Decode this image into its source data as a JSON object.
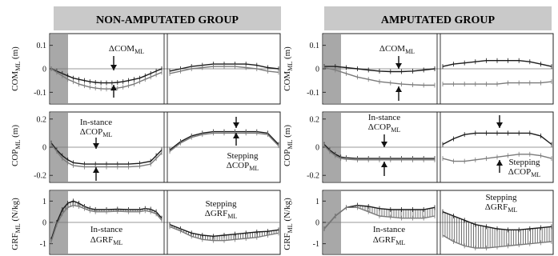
{
  "figure": {
    "groups": [
      {
        "title": "NON-AMPUTATED GROUP"
      },
      {
        "title": "AMPUTATED GROUP"
      }
    ]
  },
  "chart_data": [
    {
      "type": "line",
      "group": "NON-AMPUTATED GROUP",
      "ylabel": "COM_ML (m)",
      "ylim": [
        -0.15,
        0.15
      ],
      "yticks": [
        "0.1",
        "0",
        "-0.1"
      ],
      "zero_line": true,
      "shaded_region": "initial",
      "series": [
        {
          "segment": 1,
          "x": [
            0,
            0.05,
            0.1,
            0.15,
            0.2,
            0.25,
            0.3,
            0.35,
            0.4,
            0.45,
            0.5,
            0.55,
            0.6,
            0.65,
            0.7,
            0.75,
            0.8,
            0.85,
            0.9,
            0.95,
            1
          ],
          "values": [
            0,
            -0.01,
            -0.02,
            -0.03,
            -0.04,
            -0.045,
            -0.05,
            -0.055,
            -0.058,
            -0.06,
            -0.06,
            -0.06,
            -0.058,
            -0.055,
            -0.05,
            -0.045,
            -0.04,
            -0.03,
            -0.02,
            -0.01,
            0
          ]
        },
        {
          "segment": 1,
          "x": [
            0,
            0.05,
            0.1,
            0.15,
            0.2,
            0.25,
            0.3,
            0.35,
            0.4,
            0.45,
            0.5,
            0.55,
            0.6,
            0.65,
            0.7,
            0.75,
            0.8,
            0.85,
            0.9,
            0.95,
            1
          ],
          "values": [
            0,
            -0.015,
            -0.03,
            -0.045,
            -0.055,
            -0.065,
            -0.072,
            -0.078,
            -0.082,
            -0.085,
            -0.086,
            -0.085,
            -0.082,
            -0.078,
            -0.072,
            -0.065,
            -0.055,
            -0.045,
            -0.035,
            -0.025,
            -0.015
          ]
        },
        {
          "segment": 2,
          "x": [
            0,
            0.1,
            0.2,
            0.3,
            0.4,
            0.5,
            0.6,
            0.7,
            0.8,
            0.9,
            1
          ],
          "values": [
            -0.01,
            0,
            0.01,
            0.015,
            0.02,
            0.02,
            0.02,
            0.02,
            0.015,
            0.005,
            0
          ]
        },
        {
          "segment": 2,
          "x": [
            0,
            0.1,
            0.2,
            0.3,
            0.4,
            0.5,
            0.6,
            0.7,
            0.8,
            0.9,
            1
          ],
          "values": [
            -0.02,
            -0.01,
            0,
            0.005,
            0.01,
            0.01,
            0.01,
            0.005,
            0,
            -0.01,
            -0.015
          ]
        }
      ],
      "annotation": "ΔCOM_ML"
    },
    {
      "type": "line",
      "group": "NON-AMPUTATED GROUP",
      "ylabel": "COP_ML (m)",
      "ylim": [
        -0.25,
        0.25
      ],
      "yticks": [
        "0.2",
        "0",
        "-0.2"
      ],
      "zero_line": true,
      "shaded_region": "initial",
      "series": [
        {
          "segment": 1,
          "x": [
            0,
            0.05,
            0.1,
            0.15,
            0.2,
            0.3,
            0.4,
            0.5,
            0.6,
            0.7,
            0.8,
            0.9,
            0.95,
            1
          ],
          "values": [
            0.03,
            -0.02,
            -0.06,
            -0.09,
            -0.11,
            -0.12,
            -0.12,
            -0.12,
            -0.12,
            -0.12,
            -0.115,
            -0.1,
            -0.06,
            -0.02
          ]
        },
        {
          "segment": 1,
          "x": [
            0,
            0.05,
            0.1,
            0.15,
            0.2,
            0.3,
            0.4,
            0.5,
            0.6,
            0.7,
            0.8,
            0.9,
            0.95,
            1
          ],
          "values": [
            0.02,
            -0.03,
            -0.08,
            -0.11,
            -0.13,
            -0.14,
            -0.14,
            -0.14,
            -0.14,
            -0.14,
            -0.135,
            -0.12,
            -0.08,
            -0.04
          ]
        },
        {
          "segment": 2,
          "x": [
            0,
            0.1,
            0.2,
            0.3,
            0.4,
            0.5,
            0.6,
            0.7,
            0.8,
            0.9,
            1
          ],
          "values": [
            -0.02,
            0.04,
            0.08,
            0.1,
            0.11,
            0.11,
            0.11,
            0.11,
            0.11,
            0.1,
            0.02
          ]
        },
        {
          "segment": 2,
          "x": [
            0,
            0.1,
            0.2,
            0.3,
            0.4,
            0.5,
            0.6,
            0.7,
            0.8,
            0.9,
            1
          ],
          "values": [
            -0.03,
            0.03,
            0.07,
            0.09,
            0.1,
            0.1,
            0.1,
            0.1,
            0.1,
            0.09,
            0.01
          ]
        }
      ],
      "annotations": [
        "In-stance",
        "ΔCOP_ML",
        "Stepping",
        "ΔCOP_ML"
      ]
    },
    {
      "type": "line",
      "group": "NON-AMPUTATED GROUP",
      "ylabel": "GRF_ML (N/kg)",
      "ylim": [
        -1.5,
        1.5
      ],
      "yticks": [
        "1",
        "0",
        "-1"
      ],
      "zero_line": true,
      "shaded_region": "initial",
      "series": [
        {
          "segment": 1,
          "x": [
            0,
            0.05,
            0.1,
            0.15,
            0.2,
            0.25,
            0.3,
            0.35,
            0.4,
            0.5,
            0.6,
            0.7,
            0.8,
            0.85,
            0.9,
            0.95,
            1
          ],
          "values": [
            -0.8,
            0,
            0.6,
            0.9,
            1,
            0.9,
            0.75,
            0.65,
            0.6,
            0.6,
            0.62,
            0.6,
            0.6,
            0.65,
            0.62,
            0.5,
            0.2
          ]
        },
        {
          "segment": 1,
          "x": [
            0,
            0.05,
            0.1,
            0.15,
            0.2,
            0.25,
            0.3,
            0.35,
            0.4,
            0.5,
            0.6,
            0.7,
            0.8,
            0.85,
            0.9,
            0.95,
            1
          ],
          "values": [
            -0.9,
            -0.1,
            0.4,
            0.7,
            0.8,
            0.75,
            0.65,
            0.55,
            0.5,
            0.5,
            0.52,
            0.5,
            0.5,
            0.55,
            0.5,
            0.4,
            0.1
          ]
        },
        {
          "segment": 2,
          "x": [
            0,
            0.1,
            0.2,
            0.3,
            0.4,
            0.5,
            0.6,
            0.7,
            0.8,
            0.9,
            1
          ],
          "values": [
            -0.1,
            -0.3,
            -0.5,
            -0.6,
            -0.65,
            -0.6,
            -0.55,
            -0.5,
            -0.45,
            -0.42,
            -0.35
          ]
        },
        {
          "segment": 2,
          "x": [
            0,
            0.1,
            0.2,
            0.3,
            0.4,
            0.5,
            0.6,
            0.7,
            0.8,
            0.9,
            1
          ],
          "values": [
            -0.2,
            -0.4,
            -0.65,
            -0.8,
            -0.85,
            -0.85,
            -0.8,
            -0.75,
            -0.7,
            -0.6,
            -0.5
          ]
        }
      ],
      "fill_between": true,
      "annotations": [
        "In-stance",
        "ΔGRF_ML",
        "Stepping",
        "ΔGRF_ML"
      ]
    },
    {
      "type": "line",
      "group": "AMPUTATED GROUP",
      "ylabel": "COM_ML (m)",
      "ylim": [
        -0.15,
        0.15
      ],
      "yticks": [
        "0.1",
        "0",
        "-0.1"
      ],
      "zero_line": true,
      "shaded_region": "initial",
      "series": [
        {
          "segment": 1,
          "x": [
            0,
            0.1,
            0.2,
            0.3,
            0.4,
            0.5,
            0.6,
            0.7,
            0.8,
            0.9,
            1
          ],
          "values": [
            0.01,
            0.01,
            0.005,
            0,
            -0.005,
            -0.01,
            -0.012,
            -0.012,
            -0.01,
            -0.005,
            0
          ]
        },
        {
          "segment": 1,
          "x": [
            0,
            0.1,
            0.2,
            0.3,
            0.4,
            0.5,
            0.6,
            0.7,
            0.8,
            0.9,
            1
          ],
          "values": [
            0.005,
            -0.005,
            -0.02,
            -0.035,
            -0.045,
            -0.055,
            -0.06,
            -0.065,
            -0.068,
            -0.07,
            -0.07
          ]
        },
        {
          "segment": 2,
          "x": [
            0,
            0.1,
            0.2,
            0.3,
            0.4,
            0.5,
            0.6,
            0.7,
            0.8,
            0.9,
            1
          ],
          "values": [
            0.01,
            0.02,
            0.025,
            0.03,
            0.035,
            0.035,
            0.035,
            0.035,
            0.03,
            0.02,
            0.01
          ]
        },
        {
          "segment": 2,
          "x": [
            0,
            0.1,
            0.2,
            0.3,
            0.4,
            0.5,
            0.6,
            0.7,
            0.8,
            0.9,
            1
          ],
          "values": [
            -0.065,
            -0.065,
            -0.065,
            -0.065,
            -0.065,
            -0.065,
            -0.06,
            -0.06,
            -0.06,
            -0.06,
            -0.055
          ]
        }
      ],
      "annotation": "ΔCOM_ML"
    },
    {
      "type": "line",
      "group": "AMPUTATED GROUP",
      "ylabel": "COP_ML (m)",
      "ylim": [
        -0.25,
        0.25
      ],
      "yticks": [
        "0.2",
        "0",
        "-0.2"
      ],
      "zero_line": true,
      "shaded_region": "initial",
      "series": [
        {
          "segment": 1,
          "x": [
            0,
            0.05,
            0.1,
            0.15,
            0.2,
            0.3,
            0.4,
            0.5,
            0.6,
            0.7,
            0.8,
            0.9,
            1
          ],
          "values": [
            0.02,
            -0.02,
            -0.05,
            -0.07,
            -0.075,
            -0.08,
            -0.08,
            -0.08,
            -0.08,
            -0.08,
            -0.08,
            -0.08,
            -0.08
          ]
        },
        {
          "segment": 1,
          "x": [
            0,
            0.05,
            0.1,
            0.15,
            0.2,
            0.3,
            0.4,
            0.5,
            0.6,
            0.7,
            0.8,
            0.9,
            1
          ],
          "values": [
            0.01,
            -0.03,
            -0.06,
            -0.08,
            -0.085,
            -0.09,
            -0.09,
            -0.09,
            -0.09,
            -0.09,
            -0.09,
            -0.09,
            -0.09
          ]
        },
        {
          "segment": 2,
          "x": [
            0,
            0.1,
            0.2,
            0.3,
            0.4,
            0.5,
            0.6,
            0.7,
            0.8,
            0.9,
            1
          ],
          "values": [
            0.02,
            0.06,
            0.09,
            0.1,
            0.1,
            0.1,
            0.1,
            0.1,
            0.1,
            0.08,
            0.02
          ]
        },
        {
          "segment": 2,
          "x": [
            0,
            0.1,
            0.2,
            0.3,
            0.4,
            0.5,
            0.6,
            0.7,
            0.8,
            0.9,
            1
          ],
          "values": [
            -0.08,
            -0.1,
            -0.1,
            -0.09,
            -0.08,
            -0.07,
            -0.06,
            -0.05,
            -0.05,
            -0.06,
            -0.08
          ]
        }
      ],
      "annotations": [
        "In-stance",
        "ΔCOP_ML",
        "Stepping",
        "ΔCOP_ML"
      ]
    },
    {
      "type": "line",
      "group": "AMPUTATED GROUP",
      "ylabel": "GRF_ML (N/kg)",
      "ylim": [
        -1.5,
        1.5
      ],
      "yticks": [
        "1",
        "0",
        "-1"
      ],
      "zero_line": true,
      "shaded_region": "initial",
      "series": [
        {
          "segment": 1,
          "x": [
            0,
            0.1,
            0.2,
            0.3,
            0.4,
            0.5,
            0.6,
            0.7,
            0.8,
            0.9,
            1
          ],
          "values": [
            -0.3,
            0.3,
            0.7,
            0.8,
            0.75,
            0.65,
            0.6,
            0.6,
            0.6,
            0.6,
            0.7
          ]
        },
        {
          "segment": 1,
          "x": [
            0,
            0.1,
            0.2,
            0.3,
            0.4,
            0.5,
            0.6,
            0.7,
            0.8,
            0.9,
            1
          ],
          "values": [
            -0.3,
            0.3,
            0.7,
            0.7,
            0.5,
            0.3,
            0.25,
            0.2,
            0.2,
            0.2,
            0.3
          ]
        },
        {
          "segment": 2,
          "x": [
            0,
            0.1,
            0.2,
            0.3,
            0.4,
            0.5,
            0.6,
            0.7,
            0.8,
            0.9,
            1
          ],
          "values": [
            0.5,
            0.3,
            0.1,
            -0.1,
            -0.2,
            -0.3,
            -0.35,
            -0.35,
            -0.3,
            -0.25,
            -0.2
          ]
        },
        {
          "segment": 2,
          "x": [
            0,
            0.1,
            0.2,
            0.3,
            0.4,
            0.5,
            0.6,
            0.7,
            0.8,
            0.9,
            1
          ],
          "values": [
            -0.6,
            -0.9,
            -1.1,
            -1.2,
            -1.2,
            -1.15,
            -1.1,
            -1.05,
            -1.0,
            -0.95,
            -0.9
          ]
        }
      ],
      "fill_between": true,
      "annotations": [
        "Stepping",
        "ΔGRF_ML",
        "In-stance",
        "ΔGRF_ML"
      ]
    }
  ]
}
